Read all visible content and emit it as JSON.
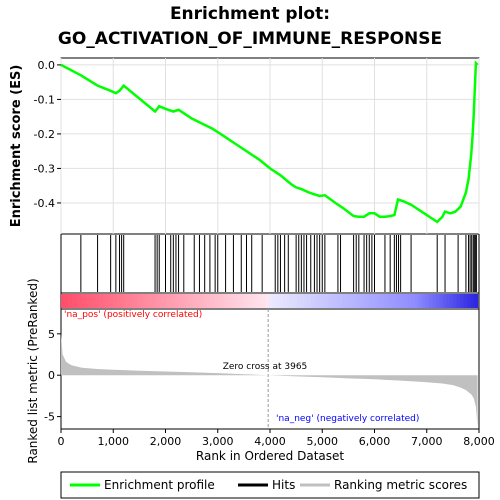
{
  "colors": {
    "enrichment": "#00ff00",
    "hits": "#000000",
    "metric": "#c0c0c0",
    "pos_label": "#ff0000",
    "neg_label": "#0000ff",
    "heat_pos": "#ff0000",
    "heat_neg": "#0000ff"
  },
  "chart_data": {
    "type": "line",
    "title_line1": "Enrichment plot:",
    "title_line2": "GO_ACTIVATION_OF_IMMUNE_RESPONSE",
    "ylabel_es": "Enrichment score (ES)",
    "ylabel_metric": "Ranked list metric (PreRanked)",
    "xlabel": "Rank in Ordered Dataset",
    "xlim": [
      0,
      8000
    ],
    "x_ticks": [
      "0",
      "1,000",
      "2,000",
      "3,000",
      "4,000",
      "5,000",
      "6,000",
      "7,000",
      "8,000"
    ],
    "x_tick_values": [
      0,
      1000,
      2000,
      3000,
      4000,
      5000,
      6000,
      7000,
      8000
    ],
    "es_ylim": [
      -0.49,
      0.02
    ],
    "es_ticks": [
      "0.0",
      "-0.1",
      "-0.2",
      "-0.3",
      "-0.4"
    ],
    "es_tick_values": [
      0.0,
      -0.1,
      -0.2,
      -0.3,
      -0.4
    ],
    "metric_ylim": [
      -6.5,
      8
    ],
    "metric_ticks": [
      "5",
      "0",
      "-5"
    ],
    "metric_tick_values": [
      5,
      0,
      -5
    ],
    "n_genes": 7973,
    "zero_cross_rank": 3965,
    "zero_cross_label": "Zero cross at 3965",
    "pos_label": "'na_pos' (positively correlated)",
    "neg_label": "'na_neg' (negatively correlated)",
    "enrichment_profile": {
      "x": [
        0,
        380,
        700,
        950,
        1050,
        1120,
        1200,
        1800,
        1880,
        2050,
        2150,
        2250,
        2500,
        2700,
        2900,
        3100,
        3400,
        3800,
        4000,
        4200,
        4400,
        4500,
        4600,
        4750,
        4850,
        4950,
        5050,
        5250,
        5400,
        5600,
        5700,
        5800,
        5900,
        6000,
        6100,
        6200,
        6300,
        6380,
        6450,
        6550,
        6700,
        6900,
        7100,
        7200,
        7300,
        7350,
        7450,
        7550,
        7650,
        7750,
        7800,
        7850,
        7880,
        7900,
        7920,
        7940,
        7973
      ],
      "y": [
        0.0,
        -0.03,
        -0.06,
        -0.075,
        -0.082,
        -0.075,
        -0.06,
        -0.135,
        -0.12,
        -0.13,
        -0.135,
        -0.13,
        -0.155,
        -0.17,
        -0.185,
        -0.205,
        -0.235,
        -0.275,
        -0.3,
        -0.32,
        -0.345,
        -0.355,
        -0.36,
        -0.37,
        -0.375,
        -0.38,
        -0.378,
        -0.4,
        -0.415,
        -0.438,
        -0.44,
        -0.44,
        -0.43,
        -0.43,
        -0.44,
        -0.44,
        -0.438,
        -0.435,
        -0.39,
        -0.395,
        -0.405,
        -0.425,
        -0.445,
        -0.455,
        -0.44,
        -0.425,
        -0.43,
        -0.425,
        -0.41,
        -0.37,
        -0.33,
        -0.26,
        -0.2,
        -0.14,
        -0.07,
        0.005,
        0.0
      ]
    },
    "hits": [
      380,
      700,
      950,
      1050,
      1120,
      1160,
      1200,
      1800,
      1840,
      1880,
      2000,
      2100,
      2150,
      2200,
      2250,
      2350,
      2550,
      2650,
      2750,
      2850,
      2950,
      3000,
      3150,
      3300,
      3450,
      3550,
      3650,
      3850,
      4100,
      4150,
      4200,
      4280,
      4350,
      4500,
      4550,
      4600,
      4650,
      4700,
      4780,
      4850,
      4900,
      4950,
      5000,
      5050,
      5300,
      5350,
      5600,
      5650,
      5700,
      5800,
      5850,
      5900,
      5950,
      6000,
      6200,
      6300,
      6380,
      6420,
      6460,
      6500,
      6700,
      7200,
      7350,
      7600,
      7750,
      7800,
      7830,
      7860,
      7890,
      7910,
      7930,
      7950
    ],
    "metric_profile": {
      "x": [
        0,
        30,
        100,
        200,
        400,
        700,
        1000,
        1500,
        2000,
        2500,
        3000,
        3500,
        3965,
        4500,
        5000,
        5500,
        6000,
        6500,
        7000,
        7300,
        7500,
        7650,
        7750,
        7850,
        7900,
        7940,
        7973
      ],
      "y": [
        5.0,
        2.5,
        1.6,
        1.2,
        0.9,
        0.75,
        0.65,
        0.55,
        0.45,
        0.35,
        0.25,
        0.12,
        0.0,
        -0.15,
        -0.25,
        -0.38,
        -0.5,
        -0.65,
        -0.85,
        -1.0,
        -1.2,
        -1.5,
        -1.8,
        -2.3,
        -2.8,
        -3.8,
        -6.2
      ]
    },
    "legend": [
      {
        "label": "Enrichment profile",
        "color": "#00ff00"
      },
      {
        "label": "Hits",
        "color": "#000000"
      },
      {
        "label": "Ranking metric scores",
        "color": "#c0c0c0"
      }
    ]
  }
}
